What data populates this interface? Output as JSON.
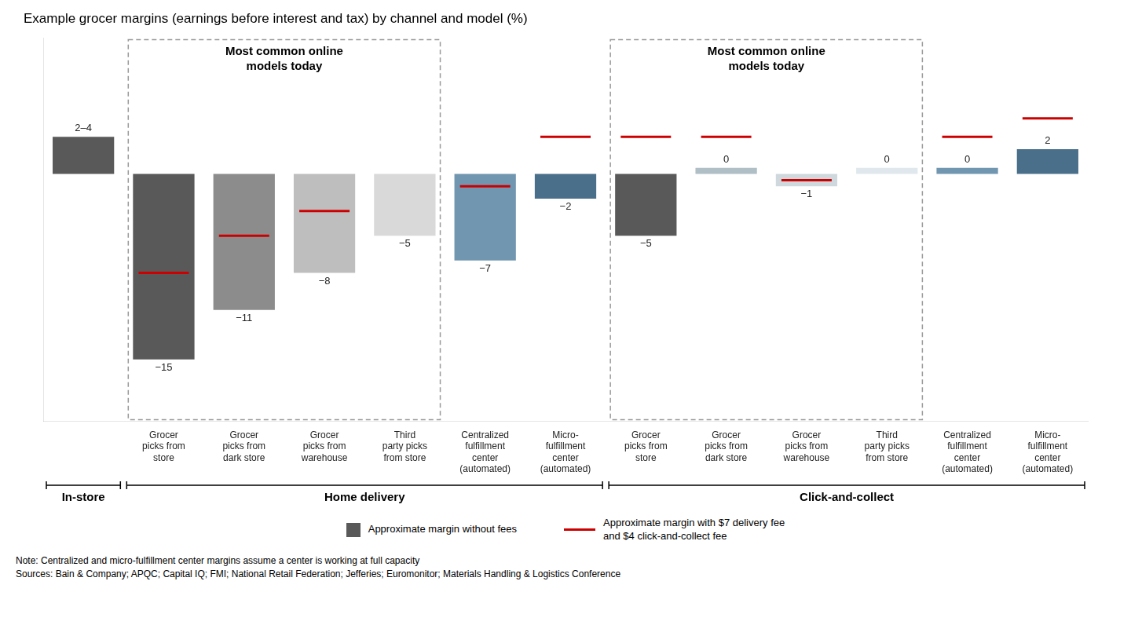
{
  "chart_data": {
    "type": "bar",
    "title": "Example grocer margins (earnings before interest and tax) by channel and model (%)",
    "categories": [
      null,
      "Grocer\npicks from\nstore",
      "Grocer\npicks from\ndark store",
      "Grocer\npicks from\nwarehouse",
      "Third\nparty picks\nfrom store",
      "Centralized\nfulfillment\ncenter\n(automated)",
      "Micro-\nfulfillment\ncenter\n(automated)",
      "Grocer\npicks from\nstore",
      "Grocer\npicks from\ndark store",
      "Grocer\npicks from\nwarehouse",
      "Third\nparty picks\nfrom store",
      "Centralized\nfulfillment\ncenter\n(automated)",
      "Micro-\nfulfillment\ncenter\n(automated)"
    ],
    "series": [
      {
        "name": "Approximate margin without fees",
        "type": "bar",
        "colors": [
          "#595959",
          "#595959",
          "#8c8c8c",
          "#bebebe",
          "#d9d9d9",
          "#7096b0",
          "#4a6f8a",
          "#595959",
          "#b0bec5",
          "#cfd8dc",
          "#e0e8ed",
          "#7096b0",
          "#4a6f8a"
        ],
        "values": [
          3,
          -15,
          -11,
          -8,
          -5,
          -7,
          -2,
          -5,
          0.5,
          -1,
          0.5,
          0.5,
          2
        ],
        "value_labels": [
          "2–4",
          "−15",
          "−11",
          "−8",
          "−5",
          "−7",
          "−2",
          "−5",
          "0",
          "−1",
          "0",
          "0",
          "2"
        ]
      },
      {
        "name": "Approximate margin with $7 delivery fee\nand $4 click-and-collect fee",
        "type": "line",
        "color": "#cc0000",
        "marker": "line",
        "line_style": "none",
        "values": [
          null,
          -8,
          -5,
          -3,
          null,
          -1,
          3,
          3,
          3,
          -0.5,
          null,
          3,
          4.5
        ]
      }
    ],
    "annotations": [
      {
        "text": "In-store",
        "type": "bracket",
        "span": [
          0,
          0
        ]
      },
      {
        "text": "Home delivery",
        "type": "bracket",
        "span": [
          1,
          6
        ]
      },
      {
        "text": "Click-and-collect",
        "type": "bracket",
        "span": [
          7,
          12
        ]
      },
      {
        "text": "Most common online\nmodels today",
        "type": "box",
        "span": [
          1,
          4
        ]
      },
      {
        "text": "Most common online\nmodels today",
        "type": "box",
        "span": [
          7,
          10
        ]
      }
    ],
    "footnote": "Note: Centralized and micro-fulfillment center margins assume a center is working at full capacity\nSources: Bain & Company; APQC; Capital IQ; FMI; National Retail Federation; Jefferies; Euromonitor; Materials Handling & Logistics Conference",
    "ylim": [
      -20,
      11
    ],
    "grid": false,
    "tick_labels": "x",
    "data_labels": true
  }
}
